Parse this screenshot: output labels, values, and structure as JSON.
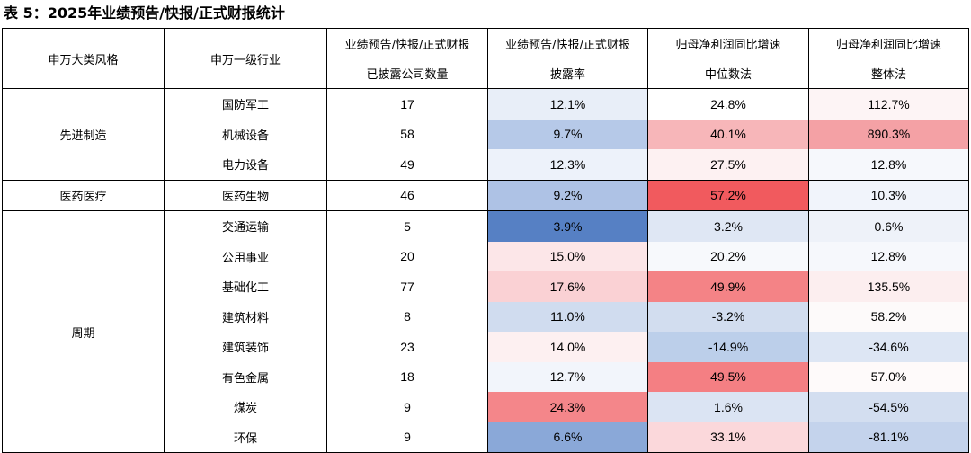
{
  "title": "表 5：2025年业绩预告/快报/正式财报统计",
  "headers": {
    "style_col": "申万大类风格",
    "industry_col": "申万一级行业",
    "count_col_line1": "业绩预告/快报/正式财报",
    "count_col_line2": "已披露公司数量",
    "rate_col_line1": "业绩预告/快报/正式财报",
    "rate_col_line2": "披露率",
    "median_col_line1": "归母净利润同比增速",
    "median_col_line2": "中位数法",
    "overall_col_line1": "归母净利润同比增速",
    "overall_col_line2": "整体法"
  },
  "groups": [
    {
      "style": "先进制造",
      "rows": [
        {
          "industry": "国防军工",
          "count": "17",
          "rate": "12.1%",
          "median": "24.8%",
          "overall": "112.7%",
          "rate_bg": "#e8eef8",
          "median_bg": "#ffffff",
          "overall_bg": "#fdf4f5"
        },
        {
          "industry": "机械设备",
          "count": "58",
          "rate": "9.7%",
          "median": "40.1%",
          "overall": "890.3%",
          "rate_bg": "#b6c9e8",
          "median_bg": "#f7b6b9",
          "overall_bg": "#f4a1a5"
        },
        {
          "industry": "电力设备",
          "count": "49",
          "rate": "12.3%",
          "median": "27.5%",
          "overall": "12.8%",
          "rate_bg": "#edf2fa",
          "median_bg": "#fdf1f2",
          "overall_bg": "#f6f8fc"
        }
      ]
    },
    {
      "style": "医药医疗",
      "rows": [
        {
          "industry": "医药生物",
          "count": "46",
          "rate": "9.2%",
          "median": "57.2%",
          "overall": "10.3%",
          "rate_bg": "#aec2e5",
          "median_bg": "#f15a5e",
          "overall_bg": "#f1f4fb"
        }
      ]
    },
    {
      "style": "周期",
      "rows": [
        {
          "industry": "交通运输",
          "count": "5",
          "rate": "3.9%",
          "median": "3.2%",
          "overall": "0.6%",
          "rate_bg": "#5680c4",
          "median_bg": "#dfe7f4",
          "overall_bg": "#eef2f9"
        },
        {
          "industry": "公用事业",
          "count": "20",
          "rate": "15.0%",
          "median": "20.2%",
          "overall": "12.8%",
          "rate_bg": "#fce6e8",
          "median_bg": "#f7f9fc",
          "overall_bg": "#f6f8fc"
        },
        {
          "industry": "基础化工",
          "count": "77",
          "rate": "17.6%",
          "median": "49.9%",
          "overall": "135.5%",
          "rate_bg": "#fad1d4",
          "median_bg": "#f48386",
          "overall_bg": "#fceeef"
        },
        {
          "industry": "建筑材料",
          "count": "8",
          "rate": "11.0%",
          "median": "-3.2%",
          "overall": "58.2%",
          "rate_bg": "#d0dcef",
          "median_bg": "#d2ddef",
          "overall_bg": "#fdfafa"
        },
        {
          "industry": "建筑装饰",
          "count": "23",
          "rate": "14.0%",
          "median": "-14.9%",
          "overall": "-34.6%",
          "rate_bg": "#fdf0f1",
          "median_bg": "#bccfea",
          "overall_bg": "#dde6f4"
        },
        {
          "industry": "有色金属",
          "count": "18",
          "rate": "12.7%",
          "median": "49.5%",
          "overall": "57.0%",
          "rate_bg": "#f2f5fb",
          "median_bg": "#f47f83",
          "overall_bg": "#fefafa"
        },
        {
          "industry": "煤炭",
          "count": "9",
          "rate": "24.3%",
          "median": "1.6%",
          "overall": "-54.5%",
          "rate_bg": "#f4868a",
          "median_bg": "#dbe4f3",
          "overall_bg": "#d3def0"
        },
        {
          "industry": "环保",
          "count": "9",
          "rate": "6.6%",
          "median": "33.1%",
          "overall": "-81.1%",
          "rate_bg": "#8aa8d8",
          "median_bg": "#fbd8db",
          "overall_bg": "#c4d3ec"
        }
      ]
    }
  ]
}
